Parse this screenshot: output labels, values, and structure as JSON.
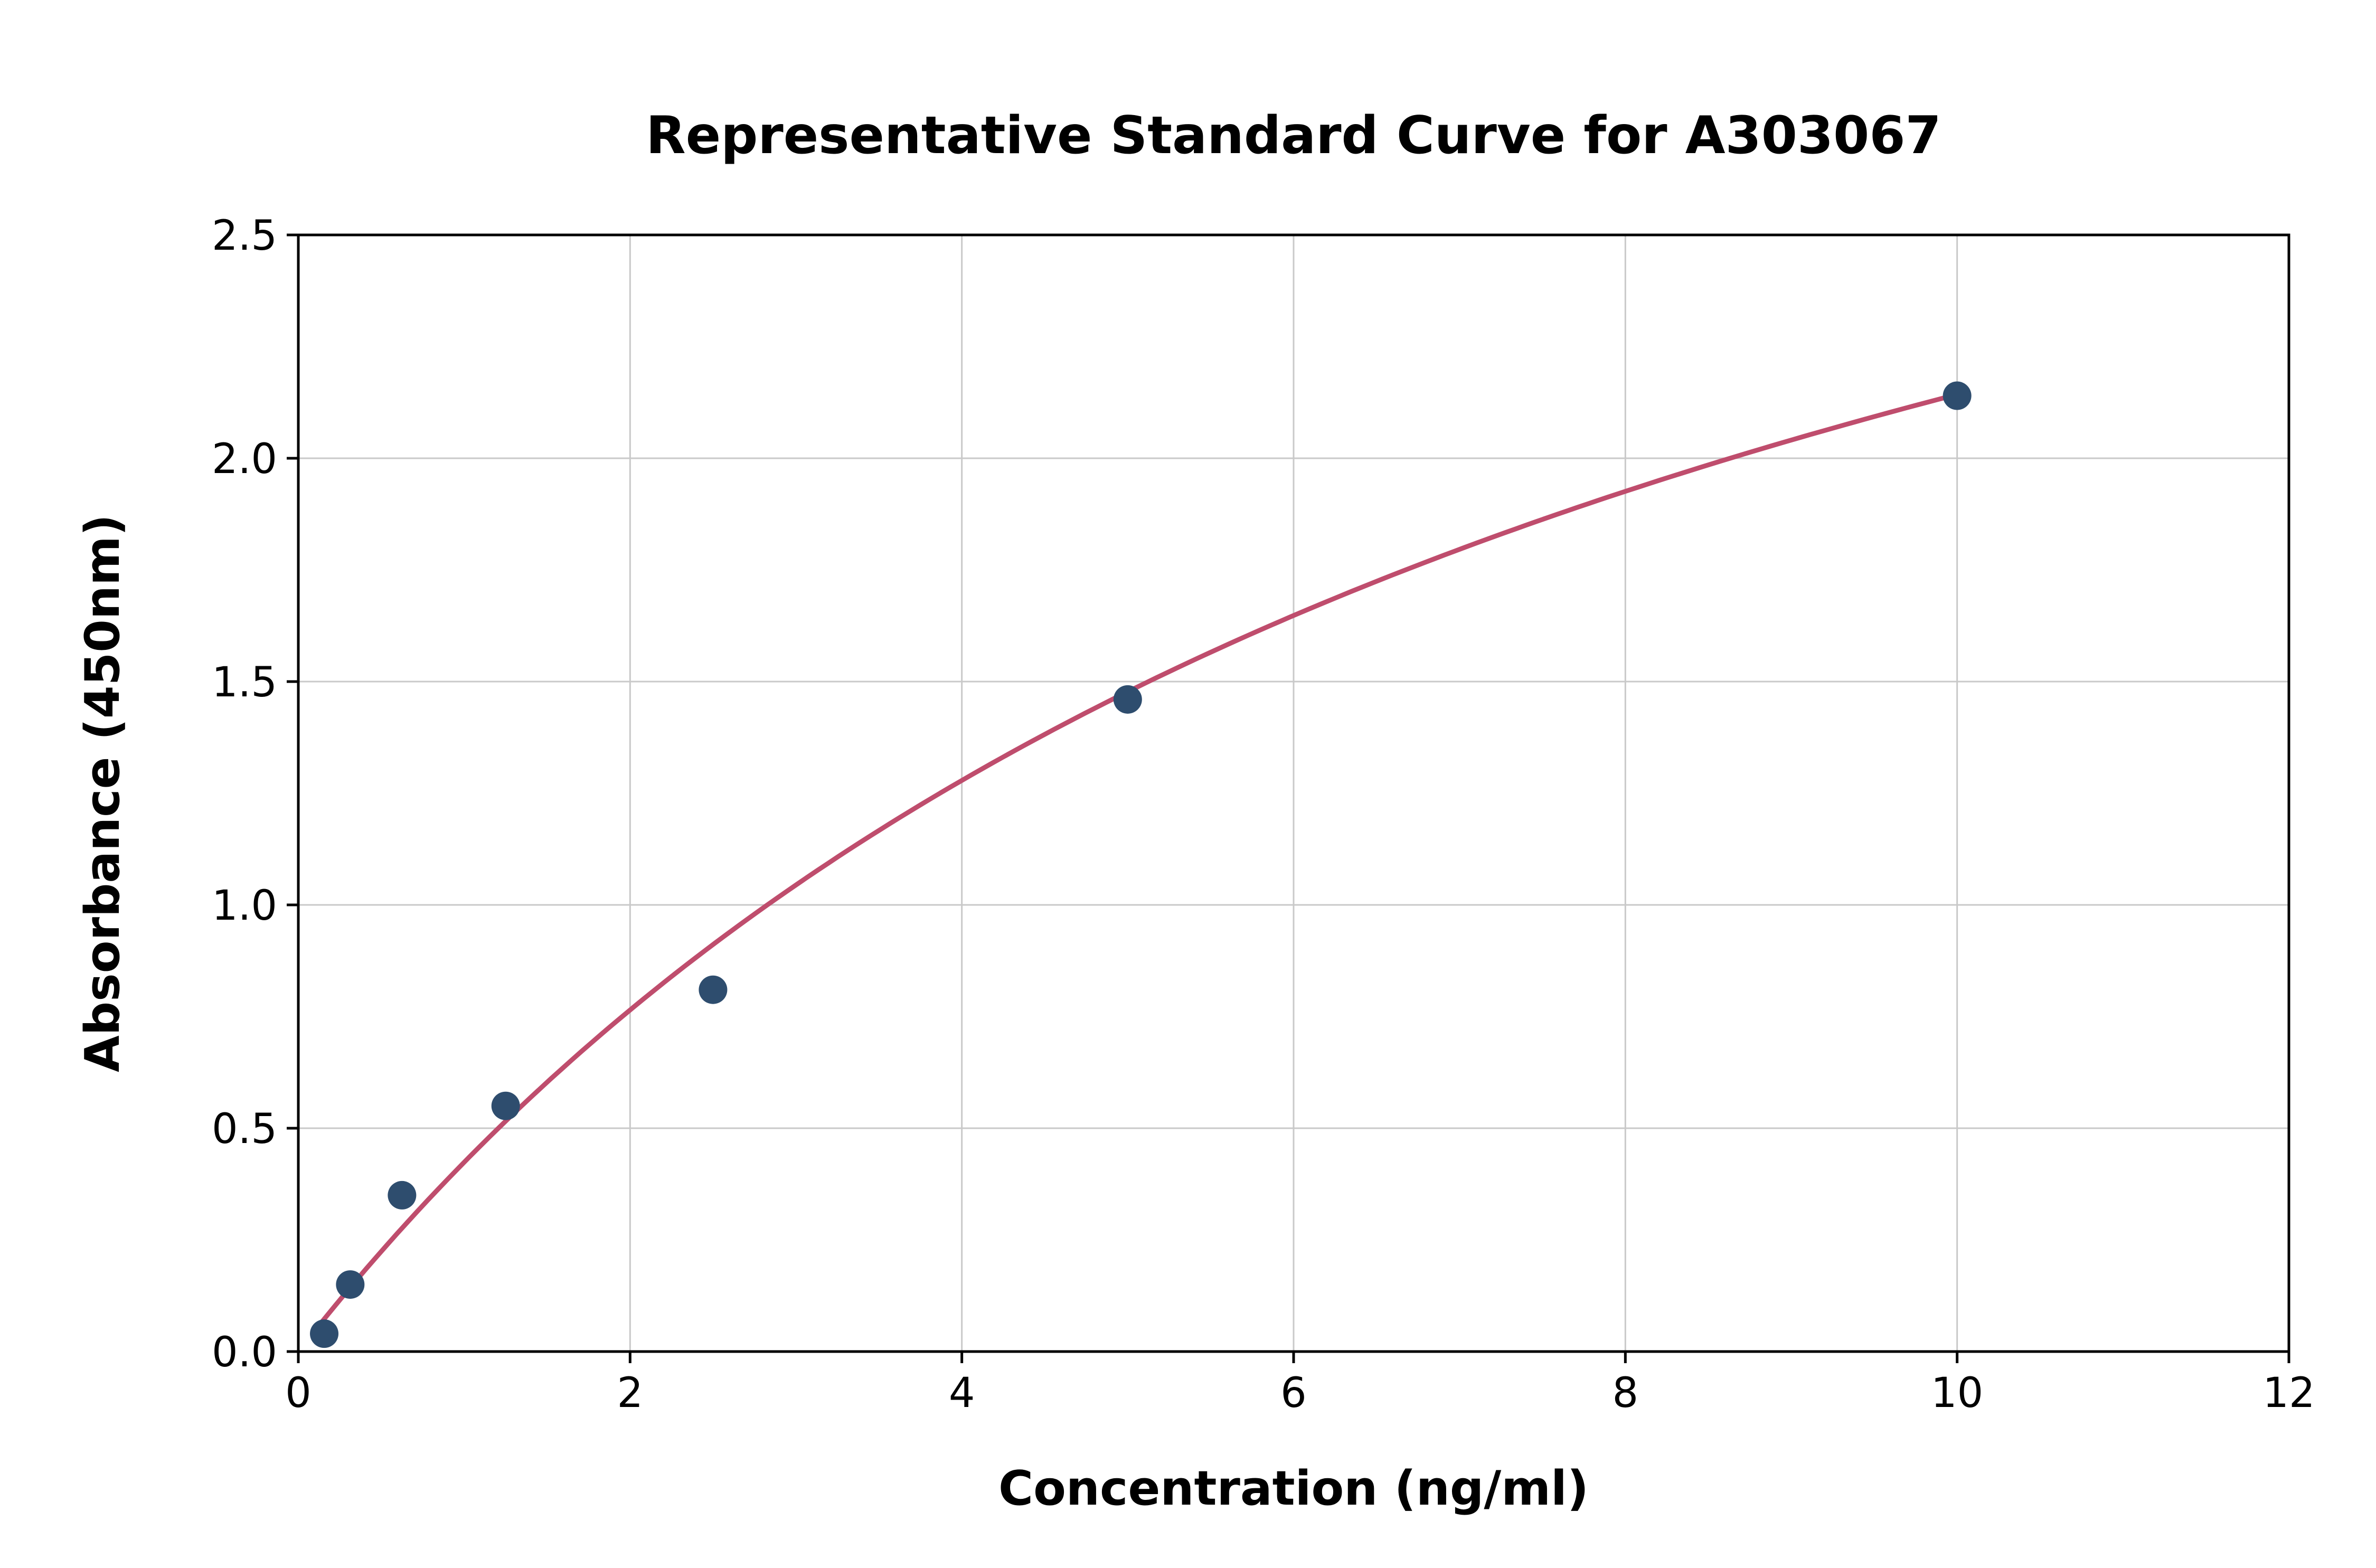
{
  "page": {
    "background": "#ffffff"
  },
  "chart_data": {
    "type": "scatter",
    "title": "Representative Standard Curve for A303067",
    "xlabel": "Concentration (ng/ml)",
    "ylabel": "Absorbance (450nm)",
    "xlim": [
      0,
      12
    ],
    "ylim": [
      0.0,
      2.5
    ],
    "x_ticks": [
      0,
      2,
      4,
      6,
      8,
      10,
      12
    ],
    "x_tick_labels": [
      "0",
      "2",
      "4",
      "6",
      "8",
      "10",
      "12"
    ],
    "y_ticks": [
      0.0,
      0.5,
      1.0,
      1.5,
      2.0,
      2.5
    ],
    "y_tick_labels": [
      "0.0",
      "0.5",
      "1.0",
      "1.5",
      "2.0",
      "2.5"
    ],
    "grid": true,
    "legend": "none",
    "series": [
      {
        "name": "standard-points",
        "type": "scatter",
        "points": [
          [
            0.156,
            0.04
          ],
          [
            0.313,
            0.15
          ],
          [
            0.625,
            0.35
          ],
          [
            1.25,
            0.55
          ],
          [
            2.5,
            0.81
          ],
          [
            5,
            1.46
          ],
          [
            10,
            2.14
          ]
        ]
      },
      {
        "name": "fitted-curve",
        "type": "line",
        "fit": {
          "model": "y = vmax * x / (km + x)",
          "vmax": 3.9,
          "km": 8.2,
          "x_start": 0.1,
          "x_end": 10
        }
      }
    ],
    "colors": {
      "points": "#2e4d6e",
      "curve": "#bf4d6d",
      "grid": "#c9c9c9",
      "axis": "#000000",
      "background": "#ffffff"
    }
  }
}
